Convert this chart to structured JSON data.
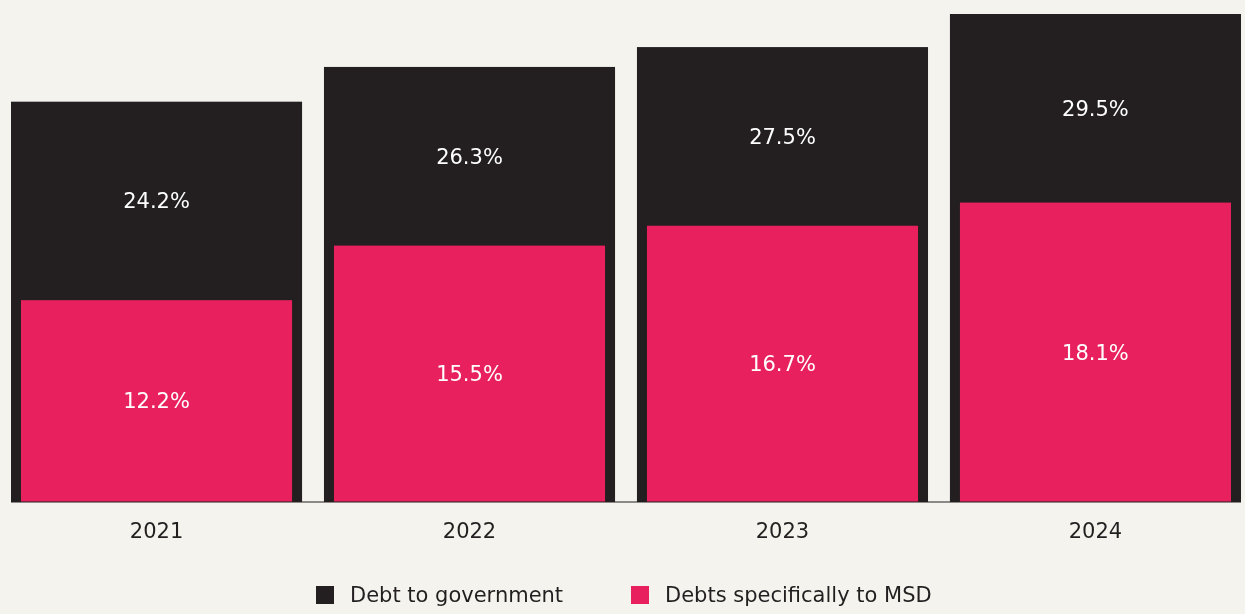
{
  "chart_data": {
    "type": "bar",
    "categories": [
      "2021",
      "2022",
      "2023",
      "2024"
    ],
    "series": [
      {
        "name": "Debt to government",
        "color": "#231f20",
        "values": [
          24.2,
          26.3,
          27.5,
          29.5
        ],
        "value_labels": [
          "24.2%",
          "26.3%",
          "27.5%",
          "29.5%"
        ]
      },
      {
        "name": "Debts specifically to MSD",
        "color": "#e8215e",
        "values": [
          12.2,
          15.5,
          16.7,
          18.1
        ],
        "value_labels": [
          "12.2%",
          "15.5%",
          "16.7%",
          "18.1%"
        ]
      }
    ],
    "legend": "bottom"
  }
}
